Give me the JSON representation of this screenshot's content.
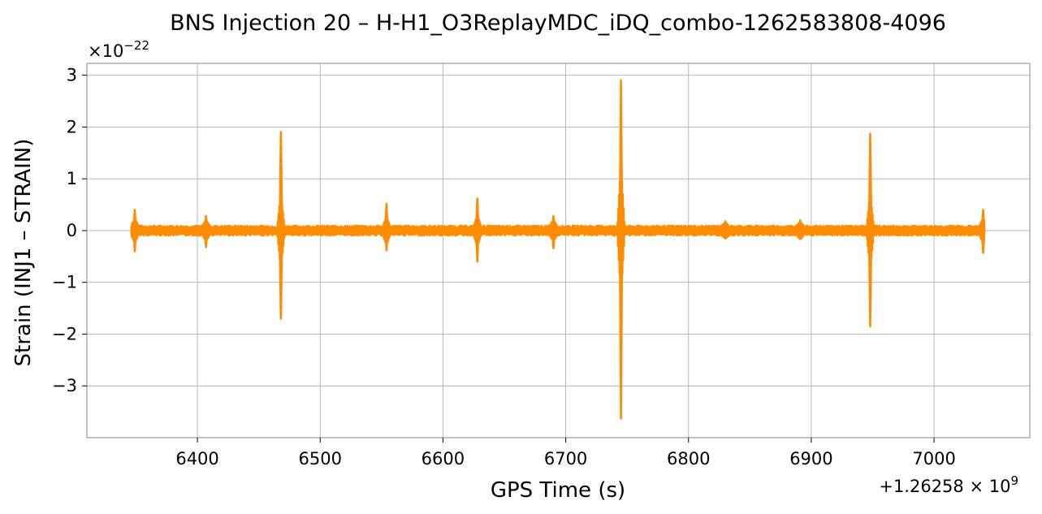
{
  "chart_data": {
    "type": "line",
    "title": "BNS Injection 20 – H-H1_O3ReplayMDC_iDQ_combo-1262583808-4096",
    "xlabel": "GPS Time (s)",
    "ylabel": "Strain (INJ1 – STRAIN)",
    "x_offset_label": "+1.26258 × 10",
    "x_offset_exponent": "9",
    "y_scale_label": "×10",
    "y_scale_exponent": "−22",
    "xlim": [
      6310,
      7078
    ],
    "ylim": [
      -4.0,
      3.23
    ],
    "x_ticks": [
      6400,
      6500,
      6600,
      6700,
      6800,
      6900,
      7000
    ],
    "y_ticks": [
      -3,
      -2,
      -1,
      0,
      1,
      2,
      3
    ],
    "x_tick_labels": [
      "6400",
      "6500",
      "6600",
      "6700",
      "6800",
      "6900",
      "7000"
    ],
    "y_tick_labels": [
      "−3",
      "−2",
      "−1",
      "0",
      "1",
      "2",
      "3"
    ],
    "grid": true,
    "line_color": "#ff8c00",
    "series": [
      {
        "data_start": 6346,
        "data_end": 7041,
        "noise_band": 0.1,
        "glitches": [
          {
            "x": 6349,
            "up": 0.4,
            "down": -0.4
          },
          {
            "x": 6407,
            "up": 0.28,
            "down": -0.32
          },
          {
            "x": 6468,
            "up": 1.9,
            "down": -1.7
          },
          {
            "x": 6554,
            "up": 0.52,
            "down": -0.38
          },
          {
            "x": 6628,
            "up": 0.62,
            "down": -0.6
          },
          {
            "x": 6690,
            "up": 0.28,
            "down": -0.34
          },
          {
            "x": 6745,
            "up": 2.9,
            "down": -3.63
          },
          {
            "x": 6830,
            "up": 0.18,
            "down": -0.12
          },
          {
            "x": 6891,
            "up": 0.2,
            "down": -0.14
          },
          {
            "x": 6948,
            "up": 1.87,
            "down": -1.85
          },
          {
            "x": 7040,
            "up": 0.4,
            "down": -0.43
          }
        ]
      }
    ]
  }
}
